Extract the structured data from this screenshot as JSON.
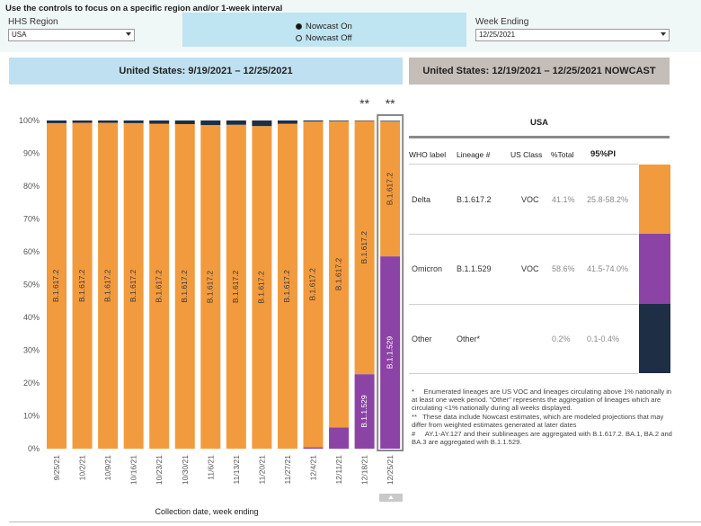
{
  "controls": {
    "instructions": "Use the controls to focus on a specific region and/or 1-week interval",
    "region_label": "HHS Region",
    "region_value": "USA",
    "nowcast_on": "Nowcast On",
    "nowcast_off": "Nowcast Off",
    "week_label": "Week Ending",
    "week_value": "12/25/2021"
  },
  "headers": {
    "left": "United States: 9/19/2021 – 12/25/2021",
    "right": "United States: 12/19/2021 – 12/25/2021 NOWCAST"
  },
  "chart_data": {
    "type": "bar",
    "stacked": true,
    "xlabel": "Collection date, week ending",
    "ylim": [
      0,
      100
    ],
    "yticks": [
      "0%",
      "10%",
      "20%",
      "30%",
      "40%",
      "50%",
      "60%",
      "70%",
      "80%",
      "90%",
      "100%"
    ],
    "categories": [
      "9/25/21",
      "10/2/21",
      "10/9/21",
      "10/16/21",
      "10/23/21",
      "10/30/21",
      "11/6/21",
      "11/13/21",
      "11/20/21",
      "11/27/21",
      "12/4/21",
      "12/11/21",
      "12/18/21",
      "12/25/21"
    ],
    "series": [
      {
        "name": "B.1.1.529",
        "color": "#8b44a6",
        "values": [
          0,
          0,
          0,
          0,
          0,
          0,
          0,
          0,
          0,
          0,
          0.4,
          6.5,
          22.7,
          58.6
        ]
      },
      {
        "name": "B.1.617.2",
        "color": "#f29b3e",
        "values": [
          99.2,
          99.3,
          99.3,
          99.2,
          99.0,
          98.9,
          98.6,
          98.7,
          98.3,
          99.0,
          99.3,
          93.3,
          77.2,
          41.1
        ]
      },
      {
        "name": "Other",
        "color": "#1d2e45",
        "values": [
          0.8,
          0.7,
          0.7,
          0.8,
          1.0,
          1.1,
          1.4,
          1.3,
          1.7,
          1.0,
          0.3,
          0.2,
          0.1,
          0.2
        ]
      }
    ],
    "bar_labels": [
      "B.1.617.2",
      "B.1.617.2",
      "B.1.617.2",
      "B.1.617.2",
      "B.1.617.2",
      "B.1.617.2",
      "B.1.617.2",
      "B.1.617.2",
      "B.1.617.2",
      "B.1.617.2",
      "B.1.617.2",
      "B.1.617.2",
      "B.1.617.2",
      "B.1.617.2"
    ],
    "omicron_labels": [
      "",
      "",
      "",
      "",
      "",
      "",
      "",
      "",
      "",
      "",
      "",
      "",
      "B.1.1.529",
      "B.1.1.529"
    ],
    "nowcast_marks": [
      "",
      "",
      "",
      "",
      "",
      "",
      "",
      "",
      "",
      "",
      "",
      "",
      "**",
      "**"
    ]
  },
  "table": {
    "title": "USA",
    "headers": [
      "WHO label",
      "Lineage #",
      "US Class",
      "%Total",
      "95%PI"
    ],
    "rows": [
      {
        "who": "Delta",
        "lineage": "B.1.617.2",
        "class": "VOC",
        "total": "41.1%",
        "pi": "25.8-58.2%",
        "color": "#f29b3e"
      },
      {
        "who": "Omicron",
        "lineage": "B.1.1.529",
        "class": "VOC",
        "total": "58.6%",
        "pi": "41.5-74.0%",
        "color": "#8b44a6"
      },
      {
        "who": "Other",
        "lineage": "Other*",
        "class": "",
        "total": "0.2%",
        "pi": "0.1-0.4%",
        "color": "#1d2e45"
      }
    ]
  },
  "footnotes": [
    "*     Enumerated lineages are US VOC and lineages circulating above 1% nationally in at least one week period. \"Other\" represents the aggregation of lineages which are circulating <1% nationally during all weeks displayed.",
    "**   These data include Nowcast estimates, which are modeled projections that may differ from weighted estimates generated at later dates",
    "#     AY.1-AY.127 and their sublineages are aggregated with B.1.617.2. BA.1, BA.2 and BA.3 are aggregated with B.1.1.529."
  ]
}
